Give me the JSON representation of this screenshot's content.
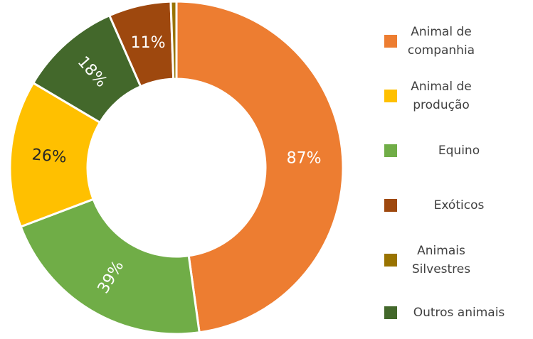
{
  "chart_data": {
    "type": "donut",
    "categories": [
      "Animal de companhia",
      "Animal de produção",
      "Equino",
      "Exóticos",
      "Animais Silvestres",
      "Outros animais"
    ],
    "values": [
      87,
      26,
      39,
      11,
      1,
      18
    ],
    "value_labels": [
      "87%",
      "26%",
      "39%",
      "11%",
      null,
      "18%"
    ],
    "colors": [
      "#ED7D31",
      "#FFC000",
      "#70AD47",
      "#9E480E",
      "#997300",
      "#43682B"
    ],
    "legend": "right"
  }
}
